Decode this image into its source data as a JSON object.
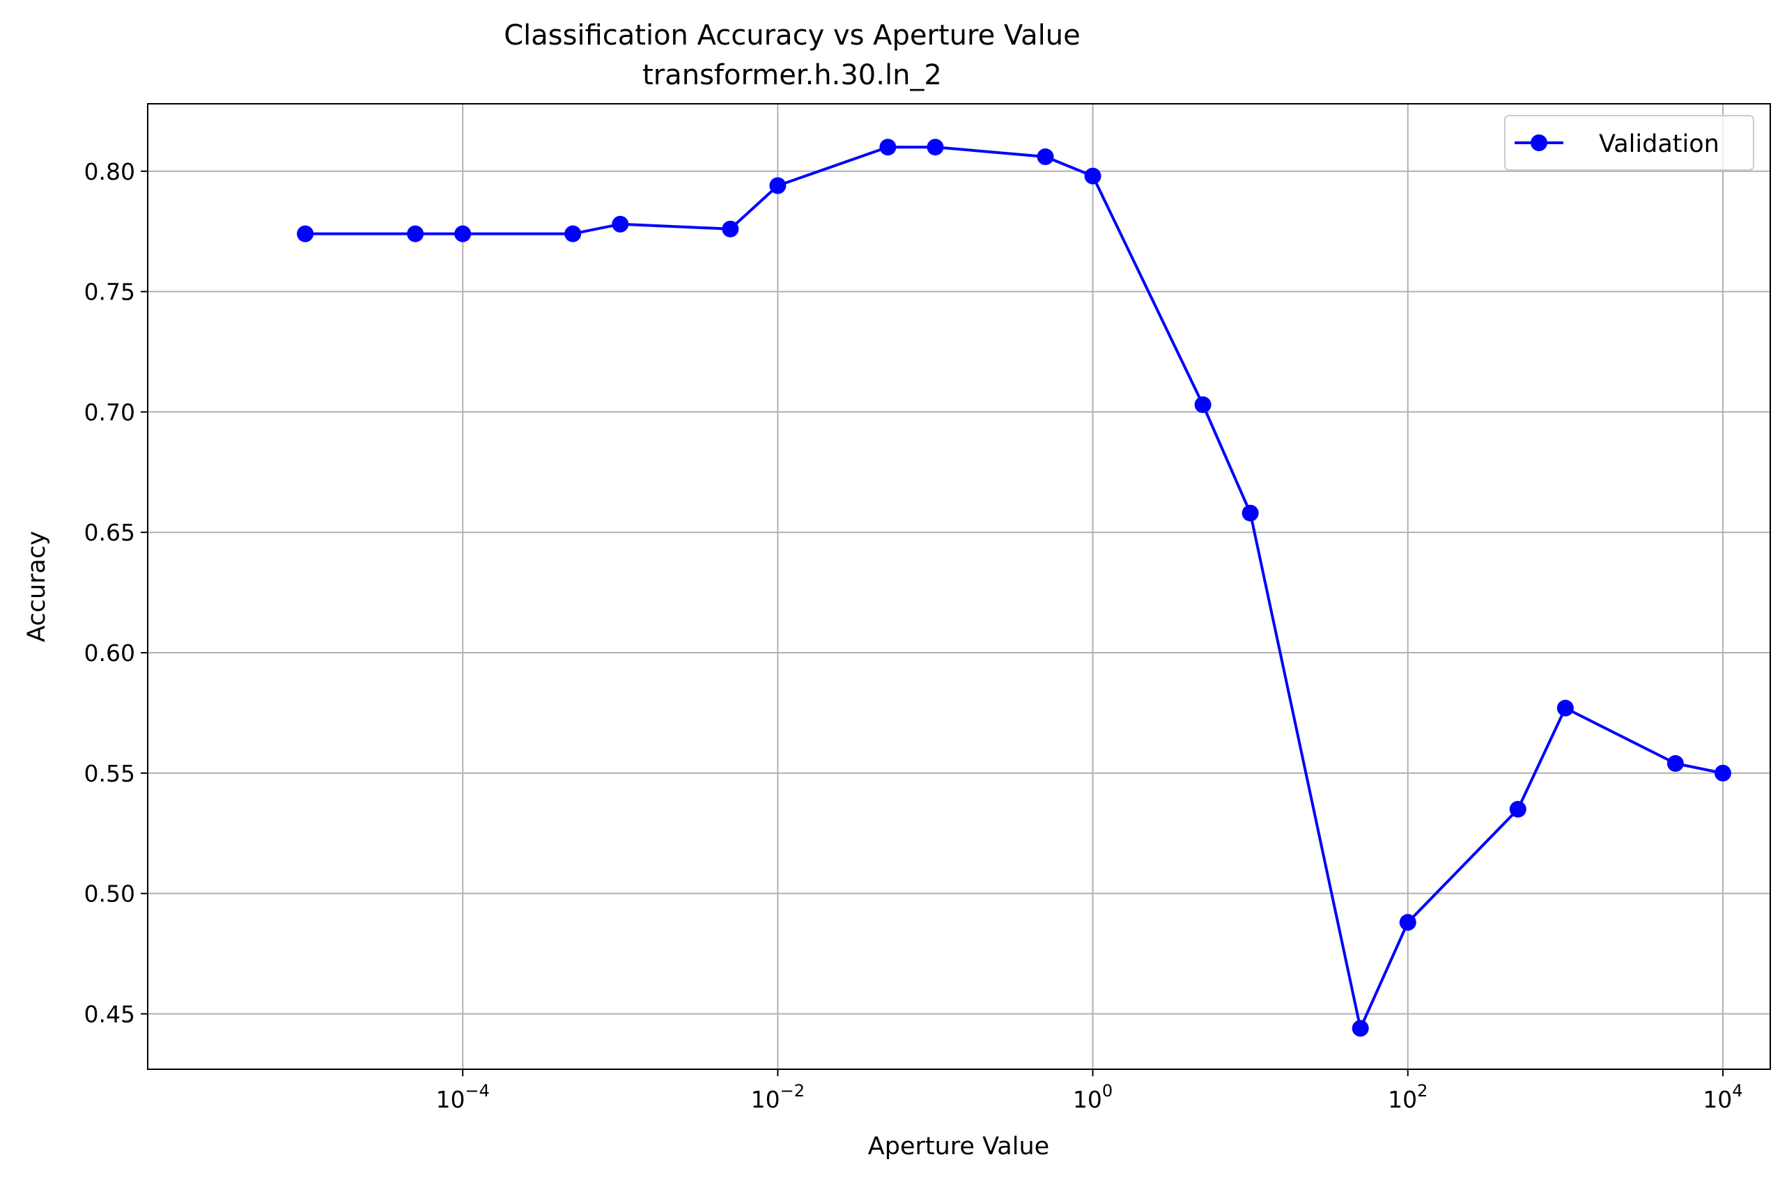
{
  "chart_data": {
    "type": "line",
    "title": "Classification Accuracy vs Aperture Value",
    "subtitle": "transformer.h.30.ln_2",
    "xlabel": "Aperture Value",
    "ylabel": "Accuracy",
    "xscale": "log",
    "xlim": [
      1e-06,
      20000
    ],
    "ylim": [
      0.427,
      0.828
    ],
    "grid": true,
    "legend_position": "top-right",
    "x_ticks": [
      {
        "value": 0.0001,
        "base": "10",
        "exp": "−4"
      },
      {
        "value": 0.01,
        "base": "10",
        "exp": "−2"
      },
      {
        "value": 1,
        "base": "10",
        "exp": "0"
      },
      {
        "value": 100,
        "base": "10",
        "exp": "2"
      },
      {
        "value": 10000,
        "base": "10",
        "exp": "4"
      }
    ],
    "y_ticks": [
      {
        "value": 0.45,
        "label": "0.45"
      },
      {
        "value": 0.5,
        "label": "0.50"
      },
      {
        "value": 0.55,
        "label": "0.55"
      },
      {
        "value": 0.6,
        "label": "0.60"
      },
      {
        "value": 0.65,
        "label": "0.65"
      },
      {
        "value": 0.7,
        "label": "0.70"
      },
      {
        "value": 0.75,
        "label": "0.75"
      },
      {
        "value": 0.8,
        "label": "0.80"
      }
    ],
    "series": [
      {
        "name": "Validation",
        "color": "#0000ff",
        "marker": "circle",
        "points": [
          {
            "x": 1e-05,
            "y": 0.774
          },
          {
            "x": 5e-05,
            "y": 0.774
          },
          {
            "x": 0.0001,
            "y": 0.774
          },
          {
            "x": 0.0005,
            "y": 0.774
          },
          {
            "x": 0.001,
            "y": 0.778
          },
          {
            "x": 0.005,
            "y": 0.776
          },
          {
            "x": 0.01,
            "y": 0.794
          },
          {
            "x": 0.05,
            "y": 0.81
          },
          {
            "x": 0.1,
            "y": 0.81
          },
          {
            "x": 0.5,
            "y": 0.806
          },
          {
            "x": 1,
            "y": 0.798
          },
          {
            "x": 5,
            "y": 0.703
          },
          {
            "x": 10,
            "y": 0.658
          },
          {
            "x": 50,
            "y": 0.444
          },
          {
            "x": 100,
            "y": 0.488
          },
          {
            "x": 500,
            "y": 0.535
          },
          {
            "x": 1000,
            "y": 0.577
          },
          {
            "x": 5000,
            "y": 0.554
          },
          {
            "x": 10000,
            "y": 0.55
          }
        ]
      }
    ]
  }
}
